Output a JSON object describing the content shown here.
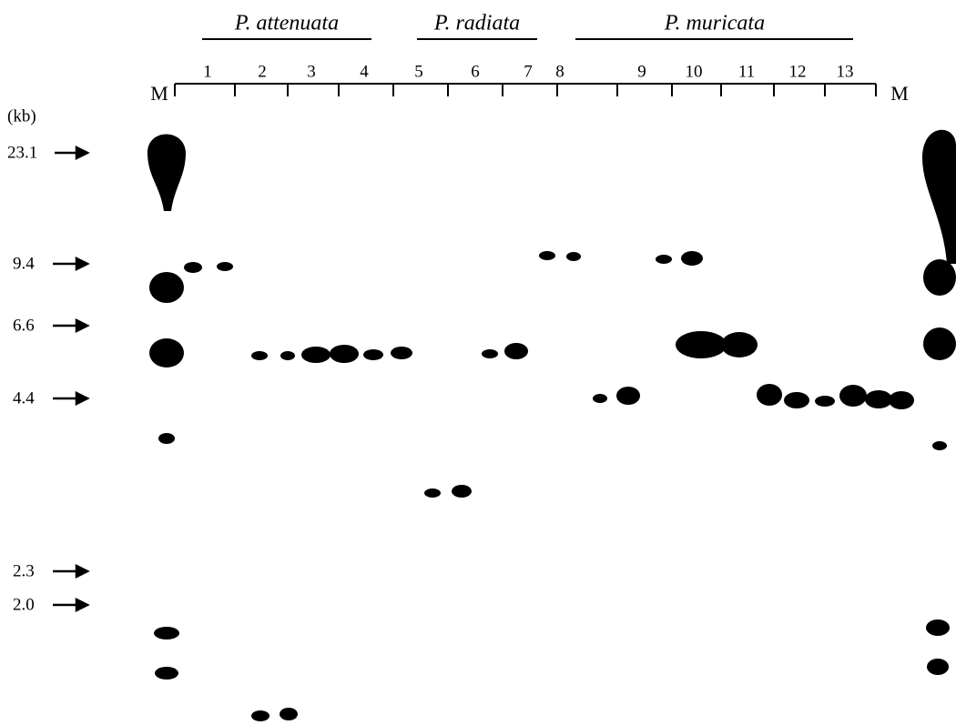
{
  "species": [
    "P. attenuata",
    "P. radiata",
    "P. muricata"
  ],
  "lanes": [
    "1",
    "2",
    "3",
    "4",
    "5",
    "6",
    "7",
    "8",
    "9",
    "10",
    "11",
    "12",
    "13"
  ],
  "marker_left": "M",
  "marker_right": "M",
  "size_unit": "(kb)",
  "sizes": [
    "23.1",
    "9.4",
    "6.6",
    "4.4",
    "2.3",
    "2.0"
  ]
}
